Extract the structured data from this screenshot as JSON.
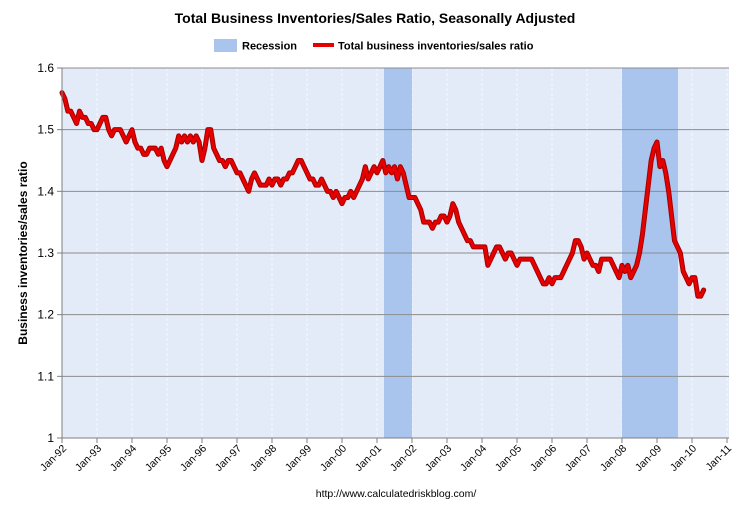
{
  "chart_data": {
    "type": "line",
    "title": "Total Business Inventories/Sales Ratio, Seasonally Adjusted",
    "xlabel": "",
    "ylabel": "Business inventories/sales ratio",
    "recession_label": "Recession",
    "legend_position": "top",
    "grid": true,
    "ylim": [
      1.0,
      1.6
    ],
    "yticks": [
      1.0,
      1.1,
      1.2,
      1.3,
      1.4,
      1.5,
      1.6
    ],
    "ytick_labels": [
      "1",
      "1.1",
      "1.2",
      "1.3",
      "1.4",
      "1.5",
      "1.6"
    ],
    "xlim": [
      1992,
      2011
    ],
    "xticks": [
      1992,
      1993,
      1994,
      1995,
      1996,
      1997,
      1998,
      1999,
      2000,
      2001,
      2002,
      2003,
      2004,
      2005,
      2006,
      2007,
      2008,
      2009,
      2010,
      2011
    ],
    "xtick_labels": [
      "Jan-92",
      "Jan-93",
      "Jan-94",
      "Jan-95",
      "Jan-96",
      "Jan-97",
      "Jan-98",
      "Jan-99",
      "Jan-00",
      "Jan-01",
      "Jan-02",
      "Jan-03",
      "Jan-04",
      "Jan-05",
      "Jan-06",
      "Jan-07",
      "Jan-08",
      "Jan-09",
      "Jan-10",
      "Jan-11"
    ],
    "recessions": [
      {
        "start": 2001.2,
        "end": 2002.0
      },
      {
        "start": 2008.0,
        "end": 2009.6
      }
    ],
    "series": [
      {
        "name": "Total business inventories/sales ratio",
        "start_year": 1992,
        "points_per_year": 12,
        "values": [
          1.56,
          1.55,
          1.53,
          1.53,
          1.52,
          1.51,
          1.53,
          1.52,
          1.52,
          1.51,
          1.51,
          1.5,
          1.5,
          1.51,
          1.52,
          1.52,
          1.5,
          1.49,
          1.5,
          1.5,
          1.5,
          1.49,
          1.48,
          1.49,
          1.5,
          1.48,
          1.47,
          1.47,
          1.46,
          1.46,
          1.47,
          1.47,
          1.47,
          1.46,
          1.47,
          1.45,
          1.44,
          1.45,
          1.46,
          1.47,
          1.49,
          1.48,
          1.49,
          1.48,
          1.49,
          1.48,
          1.49,
          1.48,
          1.45,
          1.47,
          1.5,
          1.5,
          1.47,
          1.46,
          1.45,
          1.45,
          1.44,
          1.45,
          1.45,
          1.44,
          1.43,
          1.43,
          1.42,
          1.41,
          1.4,
          1.42,
          1.43,
          1.42,
          1.41,
          1.41,
          1.41,
          1.42,
          1.41,
          1.42,
          1.42,
          1.41,
          1.42,
          1.42,
          1.43,
          1.43,
          1.44,
          1.45,
          1.45,
          1.44,
          1.43,
          1.42,
          1.42,
          1.41,
          1.41,
          1.42,
          1.41,
          1.4,
          1.4,
          1.39,
          1.4,
          1.39,
          1.38,
          1.39,
          1.39,
          1.4,
          1.39,
          1.4,
          1.41,
          1.42,
          1.44,
          1.42,
          1.43,
          1.44,
          1.43,
          1.44,
          1.45,
          1.43,
          1.44,
          1.43,
          1.44,
          1.42,
          1.44,
          1.43,
          1.41,
          1.39,
          1.39,
          1.39,
          1.38,
          1.37,
          1.35,
          1.35,
          1.35,
          1.34,
          1.35,
          1.35,
          1.36,
          1.36,
          1.35,
          1.36,
          1.38,
          1.37,
          1.35,
          1.34,
          1.33,
          1.32,
          1.32,
          1.31,
          1.31,
          1.31,
          1.31,
          1.31,
          1.28,
          1.29,
          1.3,
          1.31,
          1.31,
          1.3,
          1.29,
          1.3,
          1.3,
          1.29,
          1.28,
          1.29,
          1.29,
          1.29,
          1.29,
          1.29,
          1.28,
          1.27,
          1.26,
          1.25,
          1.25,
          1.26,
          1.25,
          1.26,
          1.26,
          1.26,
          1.27,
          1.28,
          1.29,
          1.3,
          1.32,
          1.32,
          1.31,
          1.29,
          1.3,
          1.29,
          1.28,
          1.28,
          1.27,
          1.29,
          1.29,
          1.29,
          1.29,
          1.28,
          1.27,
          1.26,
          1.28,
          1.27,
          1.28,
          1.26,
          1.27,
          1.28,
          1.3,
          1.33,
          1.37,
          1.41,
          1.45,
          1.47,
          1.48,
          1.44,
          1.45,
          1.43,
          1.4,
          1.36,
          1.32,
          1.31,
          1.3,
          1.27,
          1.26,
          1.25,
          1.26,
          1.26,
          1.23,
          1.23,
          1.24
        ]
      }
    ]
  },
  "colors": {
    "series": "#e60000",
    "series_outline": "#a30000",
    "recession": "#a9c5ee",
    "plot_background": "#e3ebf8",
    "gridline": "#8c8c8c",
    "vertical_gridline": "#f7f9fd",
    "axis": "#7f7f7f"
  },
  "footer": {
    "source": "http://www.calculatedriskblog.com/"
  }
}
